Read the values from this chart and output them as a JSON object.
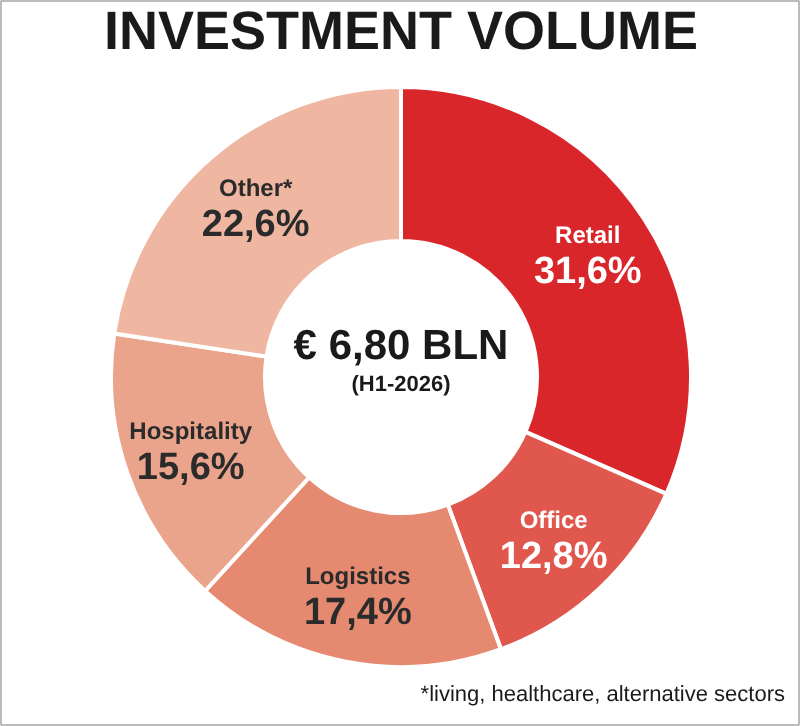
{
  "chart_data": {
    "type": "donut",
    "title": "INVESTMENT VOLUME",
    "categories": [
      "Retail",
      "Office",
      "Logistics",
      "Hospitality",
      "Other*"
    ],
    "values": [
      31.6,
      12.8,
      17.4,
      15.6,
      22.6
    ],
    "value_labels": [
      "31,6%",
      "12,8%",
      "17,4%",
      "15,6%",
      "22,6%"
    ],
    "colors": [
      "#d9262b",
      "#e0574d",
      "#e58a70",
      "#eba48c",
      "#efb6a1"
    ],
    "annotations": [
      "€ 6,80 BLN",
      "(H1-2026)",
      "*living, healthcare, alternative sectors"
    ]
  }
}
